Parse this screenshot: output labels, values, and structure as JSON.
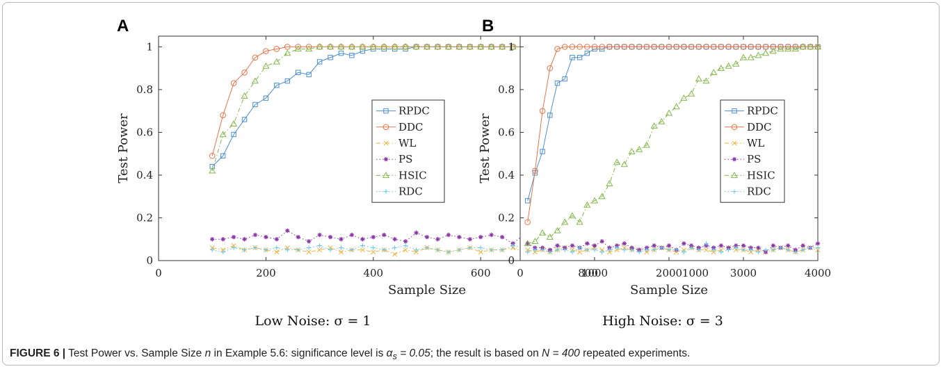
{
  "caption": {
    "figure_label": "FIGURE 6 |",
    "part1": " Test Power vs. Sample Size ",
    "n": "n",
    "part2": " in Example 5.6: significance level is ",
    "alpha": "α",
    "alpha_sub": "s",
    "alpha_val": " = 0.05",
    "part3": "; the result is based on ",
    "N": "N = 400",
    "part4": " repeated experiments."
  },
  "colors": {
    "RPDC": "#4b8fcf",
    "DDC": "#e8744a",
    "WL": "#efb341",
    "PS": "#8a35a5",
    "HSIC": "#82b84a",
    "RDC": "#62c7ef"
  },
  "chart_data": [
    {
      "type": "line",
      "panel": "A",
      "subcaption": "Low Noise: σ = 1",
      "xlabel": "Sample Size",
      "ylabel": "Test Power",
      "xlim": [
        0,
        1000
      ],
      "ylim": [
        0,
        1.05
      ],
      "xticks": [
        "0",
        "200",
        "400",
        "600",
        "800",
        "1000"
      ],
      "yticks": [
        "0",
        "0.2",
        "0.4",
        "0.6",
        "0.8",
        "1"
      ],
      "grid": false,
      "legend_position": "right",
      "x": [
        100,
        120,
        140,
        160,
        180,
        200,
        220,
        240,
        260,
        280,
        300,
        320,
        340,
        360,
        380,
        400,
        420,
        440,
        460,
        480,
        500,
        520,
        540,
        560,
        580,
        600,
        620,
        640,
        660,
        680,
        700,
        720,
        740,
        760,
        780,
        800,
        820,
        840,
        860,
        880,
        900,
        920,
        940,
        960,
        980,
        1000
      ],
      "series": [
        {
          "name": "RPDC",
          "marker": "square",
          "dash": "solid",
          "values": [
            0.44,
            0.49,
            0.59,
            0.66,
            0.73,
            0.76,
            0.82,
            0.84,
            0.88,
            0.87,
            0.93,
            0.95,
            0.97,
            0.96,
            0.98,
            0.99,
            0.99,
            0.99,
            0.99,
            1,
            1,
            1,
            1,
            1,
            1,
            1,
            1,
            1,
            1,
            1,
            1,
            1,
            1,
            1,
            1,
            1,
            1,
            1,
            1,
            1,
            1,
            1,
            1,
            1,
            1,
            1
          ]
        },
        {
          "name": "DDC",
          "marker": "circle",
          "dash": "solid",
          "values": [
            0.49,
            0.68,
            0.83,
            0.88,
            0.95,
            0.98,
            0.99,
            1,
            1,
            1,
            1,
            1,
            1,
            1,
            1,
            1,
            1,
            1,
            1,
            1,
            1,
            1,
            1,
            1,
            1,
            1,
            1,
            1,
            1,
            1,
            1,
            1,
            1,
            1,
            1,
            1,
            1,
            1,
            1,
            1,
            1,
            1,
            1,
            1,
            1,
            1
          ]
        },
        {
          "name": "WL",
          "marker": "x",
          "dash": "dashdot",
          "values": [
            0.06,
            0.05,
            0.07,
            0.05,
            0.06,
            0.05,
            0.04,
            0.06,
            0.05,
            0.04,
            0.05,
            0.06,
            0.04,
            0.05,
            0.05,
            0.04,
            0.05,
            0.03,
            0.05,
            0.04,
            0.06,
            0.05,
            0.04,
            0.05,
            0.06,
            0.04,
            0.05,
            0.05,
            0.06,
            0.04,
            0.05,
            0.06,
            0.05,
            0.05,
            0.06,
            0.05,
            0.06,
            0.05,
            0.06,
            0.05,
            0.06,
            0.05,
            0.06,
            0.06,
            0.05,
            0.06
          ]
        },
        {
          "name": "PS",
          "marker": "star",
          "dash": "dotted",
          "values": [
            0.1,
            0.1,
            0.11,
            0.1,
            0.12,
            0.11,
            0.1,
            0.14,
            0.11,
            0.09,
            0.12,
            0.11,
            0.1,
            0.12,
            0.1,
            0.11,
            0.12,
            0.1,
            0.09,
            0.13,
            0.11,
            0.1,
            0.12,
            0.11,
            0.1,
            0.11,
            0.12,
            0.11,
            0.08,
            0.12,
            0.1,
            0.11,
            0.12,
            0.1,
            0.11,
            0.12,
            0.1,
            0.11,
            0.12,
            0.1,
            0.14,
            0.11,
            0.12,
            0.1,
            0.13,
            0.09
          ]
        },
        {
          "name": "HSIC",
          "marker": "triangle",
          "dash": "dashdot",
          "values": [
            0.42,
            0.59,
            0.64,
            0.77,
            0.84,
            0.91,
            0.93,
            0.97,
            0.99,
            0.99,
            1,
            1,
            1,
            1,
            1,
            1,
            1,
            1,
            1,
            1,
            1,
            1,
            1,
            1,
            1,
            1,
            1,
            1,
            1,
            1,
            1,
            1,
            1,
            1,
            1,
            1,
            1,
            1,
            1,
            1,
            1,
            1,
            1,
            1,
            1,
            1
          ]
        },
        {
          "name": "RDC",
          "marker": "plus",
          "dash": "dotted",
          "values": [
            0.05,
            0.04,
            0.06,
            0.05,
            0.06,
            0.05,
            0.06,
            0.05,
            0.05,
            0.06,
            0.07,
            0.05,
            0.06,
            0.05,
            0.07,
            0.06,
            0.05,
            0.06,
            0.07,
            0.05,
            0.06,
            0.05,
            0.04,
            0.05,
            0.06,
            0.06,
            0.05,
            0.05,
            0.07,
            0.06,
            0.04,
            0.04,
            0.05,
            0.06,
            0.04,
            0.03,
            0.03,
            0.03,
            0.04,
            0.06,
            0.05,
            0.07,
            0.06,
            0.08,
            0.06,
            0.07
          ]
        }
      ]
    },
    {
      "type": "line",
      "panel": "B",
      "subcaption": "High Noise: σ = 3",
      "xlabel": "Sample Size",
      "ylabel": "Test Power",
      "xlim": [
        0,
        4000
      ],
      "ylim": [
        0,
        1.05
      ],
      "xticks": [
        "0",
        "1000",
        "2000",
        "3000",
        "4000"
      ],
      "yticks": [
        "0",
        "0.2",
        "0.4",
        "0.6",
        "0.8",
        "1"
      ],
      "grid": false,
      "legend_position": "right",
      "x": [
        100,
        200,
        300,
        400,
        500,
        600,
        700,
        800,
        900,
        1000,
        1100,
        1200,
        1300,
        1400,
        1500,
        1600,
        1700,
        1800,
        1900,
        2000,
        2100,
        2200,
        2300,
        2400,
        2500,
        2600,
        2700,
        2800,
        2900,
        3000,
        3100,
        3200,
        3300,
        3400,
        3500,
        3600,
        3700,
        3800,
        3900,
        4000
      ],
      "series": [
        {
          "name": "RPDC",
          "marker": "square",
          "dash": "solid",
          "values": [
            0.28,
            0.41,
            0.51,
            0.68,
            0.83,
            0.85,
            0.95,
            0.95,
            0.97,
            0.99,
            0.99,
            1,
            1,
            1,
            1,
            1,
            1,
            1,
            1,
            1,
            1,
            1,
            1,
            1,
            1,
            1,
            1,
            1,
            1,
            1,
            1,
            1,
            1,
            1,
            1,
            1,
            1,
            1,
            1,
            1
          ]
        },
        {
          "name": "DDC",
          "marker": "circle",
          "dash": "solid",
          "values": [
            0.18,
            0.42,
            0.7,
            0.9,
            0.99,
            1,
            1,
            1,
            1,
            1,
            1,
            1,
            1,
            1,
            1,
            1,
            1,
            1,
            1,
            1,
            1,
            1,
            1,
            1,
            1,
            1,
            1,
            1,
            1,
            1,
            1,
            1,
            1,
            1,
            1,
            1,
            1,
            1,
            1,
            1
          ]
        },
        {
          "name": "WL",
          "marker": "x",
          "dash": "dashdot",
          "values": [
            0.05,
            0.04,
            0.05,
            0.04,
            0.05,
            0.06,
            0.05,
            0.04,
            0.05,
            0.06,
            0.05,
            0.04,
            0.05,
            0.06,
            0.05,
            0.05,
            0.04,
            0.05,
            0.06,
            0.05,
            0.04,
            0.05,
            0.06,
            0.05,
            0.05,
            0.04,
            0.05,
            0.06,
            0.05,
            0.05,
            0.04,
            0.05,
            0.04,
            0.05,
            0.06,
            0.05,
            0.04,
            0.05,
            0.06,
            0.05
          ]
        },
        {
          "name": "PS",
          "marker": "star",
          "dash": "dotted",
          "values": [
            0.08,
            0.06,
            0.06,
            0.05,
            0.07,
            0.06,
            0.07,
            0.06,
            0.08,
            0.07,
            0.09,
            0.06,
            0.07,
            0.08,
            0.06,
            0.05,
            0.06,
            0.07,
            0.06,
            0.07,
            0.05,
            0.08,
            0.07,
            0.06,
            0.07,
            0.06,
            0.07,
            0.06,
            0.07,
            0.07,
            0.06,
            0.06,
            0.04,
            0.07,
            0.06,
            0.07,
            0.05,
            0.07,
            0.06,
            0.08
          ]
        },
        {
          "name": "HSIC",
          "marker": "triangle",
          "dash": "dashdot",
          "values": [
            0.08,
            0.09,
            0.13,
            0.11,
            0.14,
            0.18,
            0.21,
            0.18,
            0.26,
            0.28,
            0.3,
            0.36,
            0.46,
            0.45,
            0.51,
            0.52,
            0.54,
            0.63,
            0.65,
            0.69,
            0.72,
            0.76,
            0.78,
            0.85,
            0.84,
            0.88,
            0.9,
            0.91,
            0.92,
            0.95,
            0.95,
            0.96,
            0.97,
            0.98,
            0.99,
            0.99,
            0.99,
            1,
            1,
            1
          ]
        },
        {
          "name": "RDC",
          "marker": "plus",
          "dash": "dotted",
          "values": [
            0.04,
            0.05,
            0.05,
            0.04,
            0.05,
            0.05,
            0.04,
            0.06,
            0.05,
            0.05,
            0.04,
            0.05,
            0.06,
            0.05,
            0.05,
            0.04,
            0.05,
            0.05,
            0.06,
            0.05,
            0.05,
            0.04,
            0.06,
            0.05,
            0.08,
            0.05,
            0.04,
            0.05,
            0.06,
            0.05,
            0.05,
            0.04,
            0.05,
            0.05,
            0.06,
            0.05,
            0.04,
            0.05,
            0.06,
            0.06
          ]
        }
      ]
    }
  ]
}
